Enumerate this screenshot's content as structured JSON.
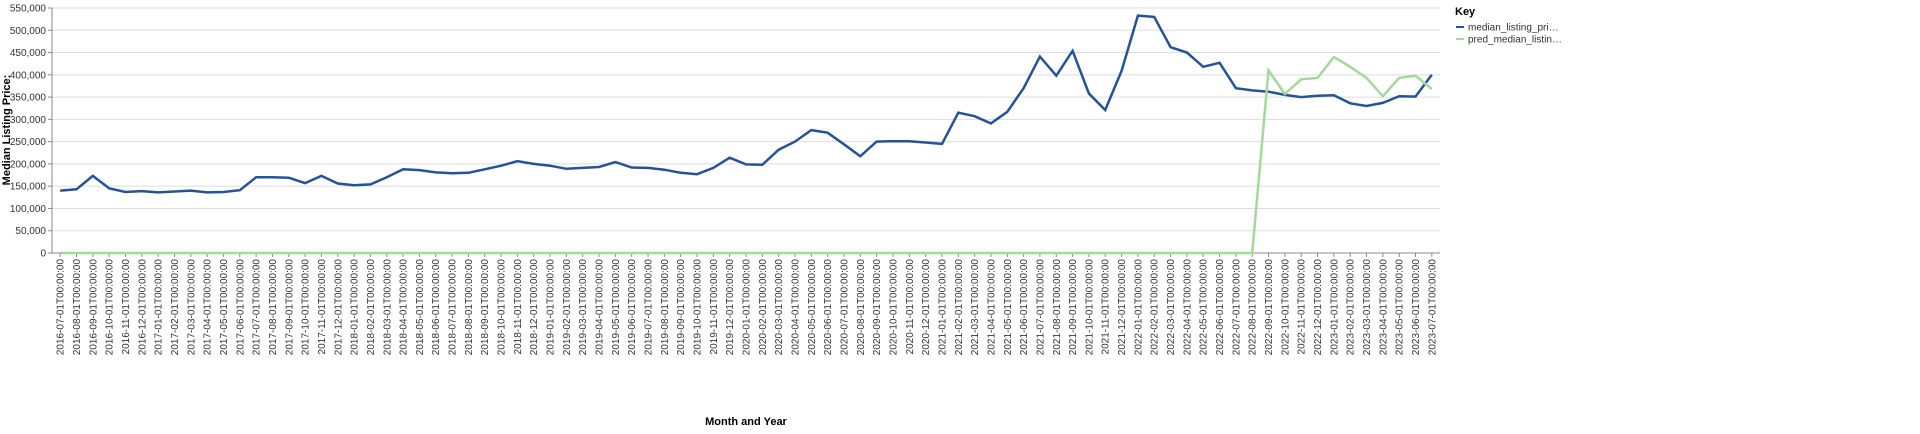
{
  "chart_data": {
    "type": "line",
    "x_label": "Month and Year",
    "y_label": "Median Listing Price:",
    "legend_title": "Key",
    "legend": "top-right",
    "grid": true,
    "categories": [
      "2016-07-01T00:00:00",
      "2016-08-01T00:00:00",
      "2016-09-01T00:00:00",
      "2016-10-01T00:00:00",
      "2016-11-01T00:00:00",
      "2016-12-01T00:00:00",
      "2017-01-01T00:00:00",
      "2017-02-01T00:00:00",
      "2017-03-01T00:00:00",
      "2017-04-01T00:00:00",
      "2017-05-01T00:00:00",
      "2017-06-01T00:00:00",
      "2017-07-01T00:00:00",
      "2017-08-01T00:00:00",
      "2017-09-01T00:00:00",
      "2017-10-01T00:00:00",
      "2017-11-01T00:00:00",
      "2017-12-01T00:00:00",
      "2018-01-01T00:00:00",
      "2018-02-01T00:00:00",
      "2018-03-01T00:00:00",
      "2018-04-01T00:00:00",
      "2018-05-01T00:00:00",
      "2018-06-01T00:00:00",
      "2018-07-01T00:00:00",
      "2018-08-01T00:00:00",
      "2018-09-01T00:00:00",
      "2018-10-01T00:00:00",
      "2018-11-01T00:00:00",
      "2018-12-01T00:00:00",
      "2019-01-01T00:00:00",
      "2019-02-01T00:00:00",
      "2019-03-01T00:00:00",
      "2019-04-01T00:00:00",
      "2019-05-01T00:00:00",
      "2019-06-01T00:00:00",
      "2019-07-01T00:00:00",
      "2019-08-01T00:00:00",
      "2019-09-01T00:00:00",
      "2019-10-01T00:00:00",
      "2019-11-01T00:00:00",
      "2019-12-01T00:00:00",
      "2020-01-01T00:00:00",
      "2020-02-01T00:00:00",
      "2020-03-01T00:00:00",
      "2020-04-01T00:00:00",
      "2020-05-01T00:00:00",
      "2020-06-01T00:00:00",
      "2020-07-01T00:00:00",
      "2020-08-01T00:00:00",
      "2020-09-01T00:00:00",
      "2020-10-01T00:00:00",
      "2020-11-01T00:00:00",
      "2020-12-01T00:00:00",
      "2021-01-01T00:00:00",
      "2021-02-01T00:00:00",
      "2021-03-01T00:00:00",
      "2021-04-01T00:00:00",
      "2021-05-01T00:00:00",
      "2021-06-01T00:00:00",
      "2021-07-01T00:00:00",
      "2021-08-01T00:00:00",
      "2021-09-01T00:00:00",
      "2021-10-01T00:00:00",
      "2021-11-01T00:00:00",
      "2021-12-01T00:00:00",
      "2022-01-01T00:00:00",
      "2022-02-01T00:00:00",
      "2022-03-01T00:00:00",
      "2022-04-01T00:00:00",
      "2022-05-01T00:00:00",
      "2022-06-01T00:00:00",
      "2022-07-01T00:00:00",
      "2022-08-01T00:00:00",
      "2022-09-01T00:00:00",
      "2022-10-01T00:00:00",
      "2022-11-01T00:00:00",
      "2022-12-01T00:00:00",
      "2023-01-01T00:00:00",
      "2023-02-01T00:00:00",
      "2023-03-01T00:00:00",
      "2023-04-01T00:00:00",
      "2023-05-01T00:00:00",
      "2023-06-01T00:00:00",
      "2023-07-01T00:00:00"
    ],
    "series": [
      {
        "name": "median_listing_pri…",
        "color": "#24539a",
        "values": [
          140000,
          143000,
          173000,
          145000,
          137000,
          139000,
          136000,
          138000,
          140000,
          136000,
          137000,
          141000,
          170000,
          170000,
          169000,
          157000,
          173000,
          156000,
          152000,
          154000,
          170000,
          188000,
          186000,
          181000,
          179000,
          180000,
          188000,
          196000,
          206000,
          200000,
          196000,
          189000,
          191000,
          193000,
          204000,
          192000,
          191000,
          187000,
          180000,
          177000,
          191000,
          214000,
          199000,
          198000,
          232000,
          250000,
          276000,
          270000,
          244000,
          217000,
          250000,
          251000,
          251000,
          248000,
          245000,
          315000,
          307000,
          291000,
          317000,
          370000,
          441000,
          398000,
          454000,
          358000,
          321000,
          409000,
          533000,
          530000,
          462000,
          450000,
          418000,
          427000,
          370000,
          365000,
          362000,
          355000,
          350000,
          353000,
          354000,
          336000,
          330000,
          337000,
          352000,
          351000,
          400000
        ]
      },
      {
        "name": "pred_median_listin…",
        "color": "#a3d99a",
        "values": [
          0,
          0,
          0,
          0,
          0,
          0,
          0,
          0,
          0,
          0,
          0,
          0,
          0,
          0,
          0,
          0,
          0,
          0,
          0,
          0,
          0,
          0,
          0,
          0,
          0,
          0,
          0,
          0,
          0,
          0,
          0,
          0,
          0,
          0,
          0,
          0,
          0,
          0,
          0,
          0,
          0,
          0,
          0,
          0,
          0,
          0,
          0,
          0,
          0,
          0,
          0,
          0,
          0,
          0,
          0,
          0,
          0,
          0,
          0,
          0,
          0,
          0,
          0,
          0,
          0,
          0,
          0,
          0,
          0,
          0,
          0,
          0,
          0,
          0,
          410000,
          357000,
          390000,
          393000,
          440000,
          418000,
          393000,
          352000,
          393000,
          398000,
          368000
        ]
      }
    ],
    "ylim": [
      0,
      550000
    ],
    "yticks": [
      0,
      {
        "value": 50000,
        "label": "50,000"
      },
      {
        "value": 100000,
        "label": "100,000"
      },
      {
        "value": 150000,
        "label": "150,000"
      },
      {
        "value": 200000,
        "label": "200,000"
      },
      {
        "value": 250000,
        "label": "250,000"
      },
      {
        "value": 300000,
        "label": "300,000"
      },
      {
        "value": 350000,
        "label": "350,000"
      },
      {
        "value": 400000,
        "label": "400,000"
      },
      {
        "value": 450000,
        "label": "450,000"
      },
      {
        "value": 500000,
        "label": "500,000"
      },
      {
        "value": {
          "value": 550000,
          "label": "550,000"
        }
      }
    ]
  }
}
